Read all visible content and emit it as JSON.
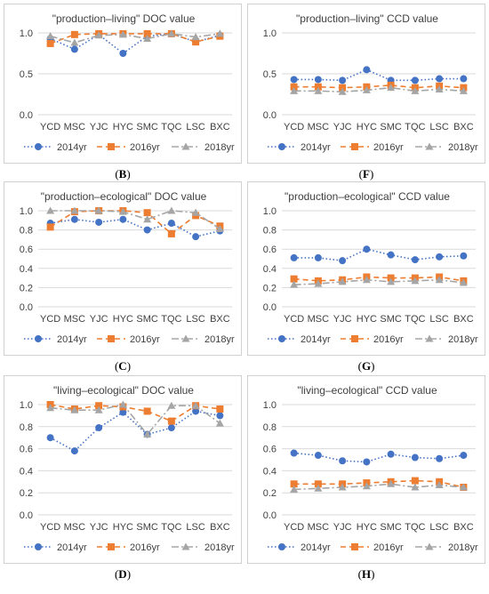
{
  "colors": {
    "s2014": "#4472C4",
    "s2016": "#ED7D31",
    "s2018": "#A5A5A5",
    "s2018alt": "#A5A5A5",
    "grid": "#d9d9d9",
    "text": "#404040"
  },
  "chart_data": [
    {
      "id": "B",
      "letter": "B",
      "type": "line",
      "title": "\"production–living\" DOC value",
      "categories": [
        "YCD",
        "MSC",
        "YJC",
        "HYC",
        "SMC",
        "TQC",
        "LSC",
        "BXC"
      ],
      "yticks": [
        "0.0",
        "0.5",
        "1.0"
      ],
      "ylim": [
        0,
        1.0
      ],
      "series": [
        {
          "name": "2014yr",
          "values": [
            0.93,
            0.8,
            0.98,
            0.75,
            0.96,
            0.99,
            0.89,
            0.97
          ]
        },
        {
          "name": "2016yr",
          "values": [
            0.87,
            0.98,
            0.99,
            0.99,
            0.99,
            0.99,
            0.89,
            0.96
          ]
        },
        {
          "name": "2018yr",
          "values": [
            0.96,
            0.88,
            0.97,
            0.98,
            0.93,
            0.99,
            0.95,
            0.99
          ]
        }
      ]
    },
    {
      "id": "F",
      "letter": "F",
      "type": "line",
      "title": "\"production–living\" CCD value",
      "categories": [
        "YCD",
        "MSC",
        "YJC",
        "HYC",
        "SMC",
        "TQC",
        "LSC",
        "BXC"
      ],
      "yticks": [
        "0.0",
        "0.5",
        "1.0"
      ],
      "ylim": [
        0,
        1.0
      ],
      "series": [
        {
          "name": "2014yr",
          "values": [
            0.43,
            0.43,
            0.42,
            0.55,
            0.42,
            0.42,
            0.44,
            0.44
          ]
        },
        {
          "name": "2016yr",
          "values": [
            0.34,
            0.34,
            0.33,
            0.34,
            0.36,
            0.33,
            0.35,
            0.33
          ]
        },
        {
          "name": "2018yr",
          "values": [
            0.29,
            0.29,
            0.28,
            0.3,
            0.33,
            0.29,
            0.31,
            0.29
          ]
        }
      ]
    },
    {
      "id": "C",
      "letter": "C",
      "type": "line",
      "title": "\"production–ecological\" DOC value",
      "categories": [
        "YCD",
        "MSC",
        "YJC",
        "HYC",
        "SMC",
        "TQC",
        "LSC",
        "BXC"
      ],
      "yticks": [
        "0.0",
        "0.2",
        "0.4",
        "0.6",
        "0.8",
        "1.0"
      ],
      "ylim": [
        0,
        1.0
      ],
      "series": [
        {
          "name": "2014yr",
          "values": [
            0.87,
            0.91,
            0.88,
            0.91,
            0.8,
            0.87,
            0.73,
            0.79
          ]
        },
        {
          "name": "2016yr",
          "values": [
            0.83,
            0.99,
            1.0,
            1.0,
            0.98,
            0.76,
            0.95,
            0.84
          ]
        },
        {
          "name": "2018yr",
          "values": [
            1.0,
            1.0,
            1.0,
            0.99,
            0.91,
            1.0,
            0.98,
            0.81
          ]
        }
      ]
    },
    {
      "id": "G",
      "letter": "G",
      "type": "line",
      "title": "\"production–ecological\" CCD value",
      "categories": [
        "YCD",
        "MSC",
        "YJC",
        "HYC",
        "SMC",
        "TQC",
        "LSC",
        "BXC"
      ],
      "yticks": [
        "0.0",
        "0.2",
        "0.4",
        "0.6",
        "0.8",
        "1.0"
      ],
      "ylim": [
        0,
        1.0
      ],
      "series": [
        {
          "name": "2014yr",
          "values": [
            0.51,
            0.51,
            0.48,
            0.6,
            0.54,
            0.49,
            0.52,
            0.53
          ]
        },
        {
          "name": "2016yr",
          "values": [
            0.29,
            0.27,
            0.28,
            0.31,
            0.3,
            0.3,
            0.31,
            0.27
          ]
        },
        {
          "name": "2018yr",
          "values": [
            0.23,
            0.24,
            0.26,
            0.28,
            0.26,
            0.27,
            0.28,
            0.25
          ]
        }
      ]
    },
    {
      "id": "D",
      "letter": "D",
      "type": "line",
      "title": "\"living–ecological\" DOC value",
      "categories": [
        "YCD",
        "MSC",
        "YJC",
        "HYC",
        "SMC",
        "TQC",
        "LSC",
        "BXC"
      ],
      "yticks": [
        "0.0",
        "0.2",
        "0.4",
        "0.6",
        "0.8",
        "1.0"
      ],
      "ylim": [
        0,
        1.0
      ],
      "series": [
        {
          "name": "2014yr",
          "values": [
            0.7,
            0.58,
            0.79,
            0.93,
            0.73,
            0.79,
            0.94,
            0.9
          ]
        },
        {
          "name": "2016yr",
          "values": [
            1.0,
            0.96,
            0.99,
            0.98,
            0.94,
            0.85,
            0.99,
            0.96
          ]
        },
        {
          "name": "2018yr",
          "values": [
            0.97,
            0.95,
            0.95,
            1.0,
            0.73,
            0.99,
            0.99,
            0.83
          ]
        }
      ]
    },
    {
      "id": "H",
      "letter": "H",
      "type": "line",
      "title": "\"living–ecological\" CCD value",
      "categories": [
        "YCD",
        "MSC",
        "YJC",
        "HYC",
        "SMC",
        "TQC",
        "LSC",
        "BXC"
      ],
      "yticks": [
        "0.0",
        "0.2",
        "0.4",
        "0.6",
        "0.8",
        "1.0"
      ],
      "ylim": [
        0,
        1.0
      ],
      "series": [
        {
          "name": "2014yr",
          "values": [
            0.56,
            0.54,
            0.49,
            0.48,
            0.55,
            0.52,
            0.51,
            0.54
          ]
        },
        {
          "name": "2016yr",
          "values": [
            0.28,
            0.28,
            0.28,
            0.29,
            0.3,
            0.31,
            0.3,
            0.25
          ]
        },
        {
          "name": "2018yr",
          "values": [
            0.23,
            0.24,
            0.25,
            0.26,
            0.28,
            0.25,
            0.27,
            0.25
          ]
        }
      ]
    }
  ]
}
